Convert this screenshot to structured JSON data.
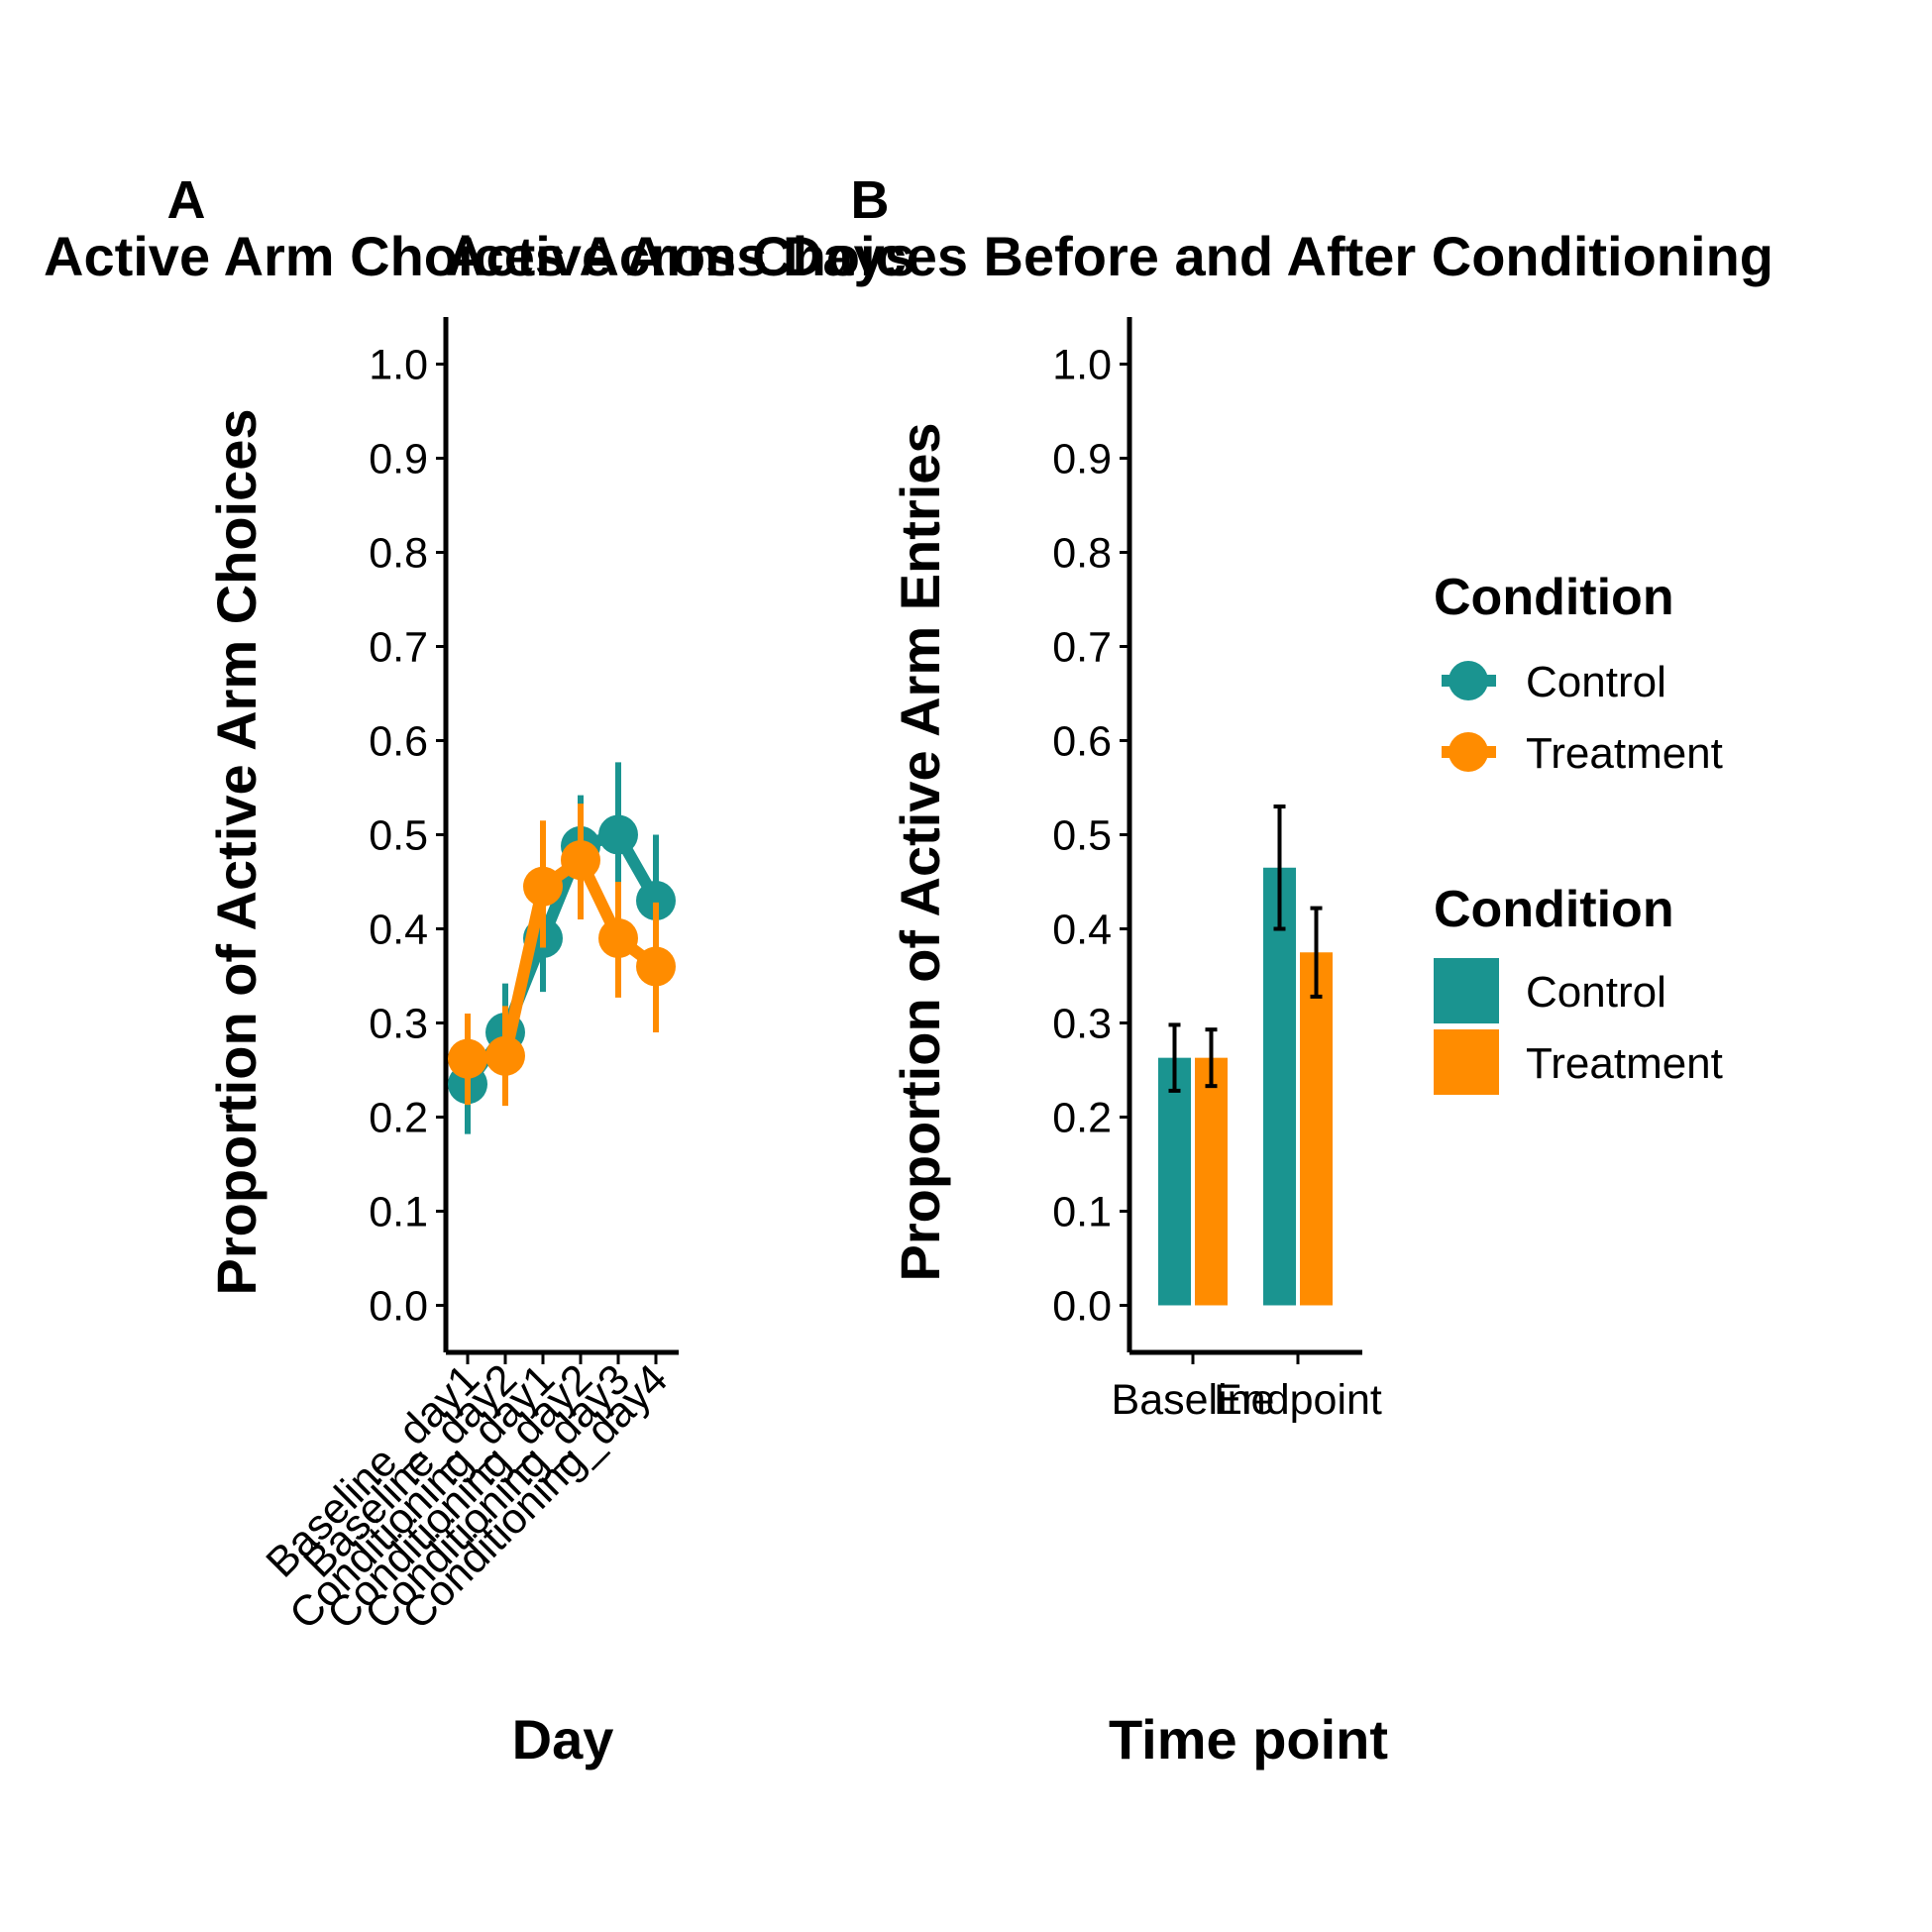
{
  "colors": {
    "Control": "#1A9490",
    "Treatment": "#FF8C00",
    "axis": "#000000",
    "errorbar_bar": "#000000"
  },
  "chart_data": [
    {
      "panel": "A",
      "type": "line",
      "title": "Active Arm Choices Across Days",
      "xlabel": "Day",
      "ylabel": "Proportion of Active Arm Choices",
      "ylim": [
        -0.05,
        1.05
      ],
      "yticks": [
        "0.0",
        "0.1",
        "0.2",
        "0.3",
        "0.4",
        "0.5",
        "0.6",
        "0.7",
        "0.8",
        "0.9",
        "1.0"
      ],
      "categories": [
        "Baseline_day1",
        "Baseline_day2",
        "Conditioning_day1",
        "Conditioning_day2",
        "Conditioning_day3",
        "Conditioning_day4"
      ],
      "series": [
        {
          "name": "Control",
          "values": [
            0.235,
            0.29,
            0.39,
            0.488,
            0.5,
            0.43
          ],
          "error_low": [
            0.182,
            0.238,
            0.333,
            0.435,
            0.422,
            0.355
          ],
          "error_high": [
            0.288,
            0.342,
            0.445,
            0.542,
            0.577,
            0.5
          ]
        },
        {
          "name": "Treatment",
          "values": [
            0.262,
            0.265,
            0.445,
            0.473,
            0.39,
            0.36
          ],
          "error_low": [
            0.213,
            0.212,
            0.38,
            0.41,
            0.327,
            0.29
          ],
          "error_high": [
            0.31,
            0.318,
            0.515,
            0.533,
            0.45,
            0.428
          ]
        }
      ],
      "legend": "right",
      "grid": false
    },
    {
      "panel": "B",
      "type": "bar",
      "title": "Active Arm Choices Before and After Conditioning",
      "xlabel": "Time point",
      "ylabel": "Proportion of Active Arm Entries",
      "ylim": [
        -0.05,
        1.05
      ],
      "yticks": [
        "0.0",
        "0.1",
        "0.2",
        "0.3",
        "0.4",
        "0.5",
        "0.6",
        "0.7",
        "0.8",
        "0.9",
        "1.0"
      ],
      "categories": [
        "Baseline",
        "Endpoint"
      ],
      "series": [
        {
          "name": "Control",
          "values": [
            0.263,
            0.465
          ],
          "error_low": [
            0.228,
            0.4
          ],
          "error_high": [
            0.298,
            0.53
          ]
        },
        {
          "name": "Treatment",
          "values": [
            0.263,
            0.375
          ],
          "error_low": [
            0.233,
            0.328
          ],
          "error_high": [
            0.293,
            0.422
          ]
        }
      ],
      "grid": false
    }
  ],
  "legends": [
    {
      "title": "Condition",
      "style": "point-line",
      "entries": [
        "Control",
        "Treatment"
      ]
    },
    {
      "title": "Condition",
      "style": "fill",
      "entries": [
        "Control",
        "Treatment"
      ]
    }
  ]
}
